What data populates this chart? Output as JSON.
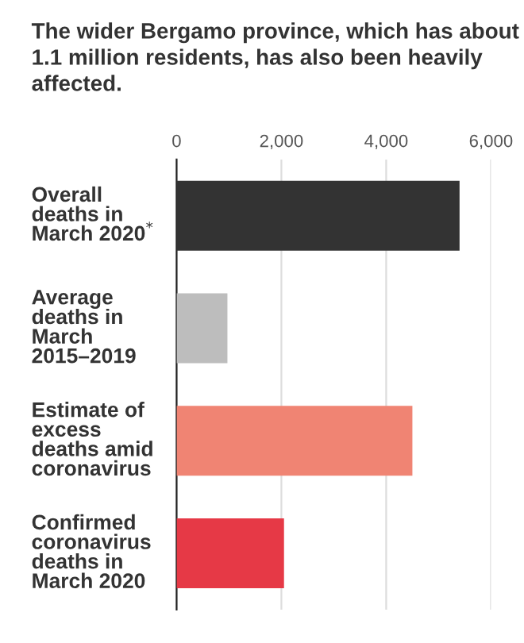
{
  "chart_data": {
    "type": "bar",
    "orientation": "horizontal",
    "title": "The wider Bergamo province, which has about 1.1 million residents, has also been heavily affected.",
    "categories": [
      "Overall\ndeaths in\nMarch 2020$^{*}$",
      "Average\ndeaths in\nMarch\n2015–2019",
      "Estimate of\nexcess\ndeaths amid\ncoronavirus",
      "Confirmed\ncoronavirus\ndeaths in\nMarch 2020"
    ],
    "values": [
      5400,
      970,
      4500,
      2050
    ],
    "colors": [
      "#333333",
      "#bdbdbd",
      "#f08473",
      "#e63946"
    ],
    "xlim": [
      0,
      6000
    ],
    "xticks": [
      0,
      {
        "value": 2000,
        "label": "2,000"
      },
      {
        "value": 4000,
        "label": "4,000"
      },
      {
        "value": 6000,
        "label": "6,000"
      }
    ],
    "grid": "x"
  }
}
